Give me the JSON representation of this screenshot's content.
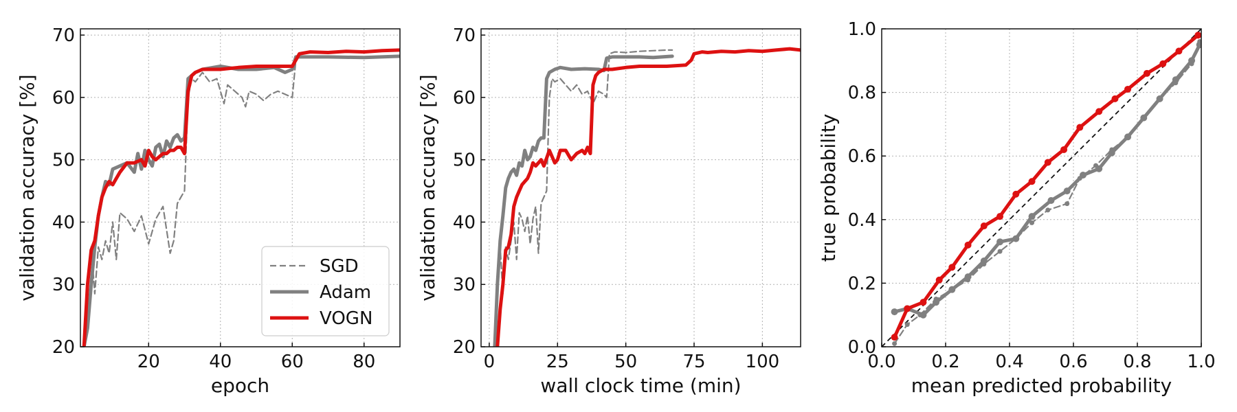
{
  "colors": {
    "sgd": "#808080",
    "adam": "#808080",
    "vogn": "#dd1111",
    "diagonal": "#111111"
  },
  "legend": [
    {
      "key": "sgd",
      "label": "SGD",
      "style": "dashed"
    },
    {
      "key": "adam",
      "label": "Adam",
      "style": "solid-thick"
    },
    {
      "key": "vogn",
      "label": "VOGN",
      "style": "solid-thick"
    }
  ],
  "chart_data": [
    {
      "type": "line",
      "xlabel": "epoch",
      "ylabel": "validation accuracy [%]",
      "xlim": [
        1,
        90
      ],
      "ylim": [
        20,
        71
      ],
      "xticks": [
        20,
        40,
        60,
        80
      ],
      "yticks": [
        20,
        30,
        40,
        50,
        60,
        70
      ],
      "grid": true,
      "legend_position": "bottom-right",
      "series": [
        {
          "key": "sgd",
          "name": "SGD",
          "style": "dashed",
          "x": [
            2,
            3,
            4,
            5,
            6,
            7,
            8,
            9,
            10,
            11,
            12,
            14,
            16,
            18,
            20,
            22,
            24,
            26,
            27,
            28,
            29,
            30,
            31,
            32,
            33,
            35,
            37,
            39,
            41,
            42,
            44,
            46,
            47,
            48,
            50,
            52,
            54,
            56,
            58,
            60,
            61
          ],
          "y": [
            20,
            29,
            36,
            28.5,
            36,
            34,
            37,
            35,
            40,
            34,
            41.5,
            40.5,
            38.5,
            41,
            36.5,
            40.5,
            42.5,
            35,
            37,
            43,
            44,
            45,
            60,
            63,
            62.5,
            64,
            62.5,
            63,
            59,
            62,
            61,
            60,
            58.5,
            61,
            60.5,
            59.5,
            60.5,
            61,
            60.5,
            60,
            66
          ]
        },
        {
          "key": "adam",
          "name": "Adam",
          "style": "solid",
          "x": [
            2,
            3,
            4,
            5,
            6,
            7,
            8,
            9,
            10,
            12,
            14,
            16,
            17,
            18,
            19,
            20,
            21,
            22,
            23,
            24,
            25,
            26,
            27,
            28,
            29,
            30,
            31,
            33,
            35,
            40,
            45,
            50,
            55,
            58,
            60,
            61,
            63,
            70,
            80,
            90
          ],
          "y": [
            20,
            23,
            30,
            36,
            41,
            44,
            46.5,
            46,
            48.5,
            49,
            49.5,
            48,
            51,
            48.5,
            51.5,
            50,
            49,
            52,
            52.5,
            50.5,
            53,
            52,
            53.5,
            54,
            53,
            53.5,
            63,
            64,
            64.5,
            65,
            64.5,
            64.5,
            64.8,
            64,
            64.5,
            66.5,
            66.5,
            66.5,
            66.4,
            66.6
          ]
        },
        {
          "key": "vogn",
          "name": "VOGN",
          "style": "solid",
          "x": [
            2,
            3,
            4,
            5,
            6,
            7,
            8,
            9,
            10,
            11,
            12,
            14,
            16,
            18,
            19,
            20,
            21,
            22,
            23,
            24,
            25,
            26,
            27,
            28,
            29,
            30,
            31,
            32,
            33,
            35,
            40,
            45,
            50,
            55,
            60,
            61,
            62,
            65,
            70,
            75,
            80,
            85,
            90
          ],
          "y": [
            20,
            30,
            35.5,
            37,
            41,
            44,
            45.5,
            46.5,
            46,
            47,
            48,
            49.5,
            49.5,
            50,
            49,
            51.5,
            50.5,
            50,
            50.5,
            51,
            51,
            51.5,
            51.5,
            52,
            52,
            51,
            61,
            63.5,
            64,
            64.5,
            64.5,
            64.8,
            65,
            65,
            65,
            66,
            67,
            67.3,
            67.2,
            67.4,
            67.3,
            67.5,
            67.6
          ]
        }
      ]
    },
    {
      "type": "line",
      "xlabel": "wall clock time (min)",
      "ylabel": "validation accuracy [%]",
      "xlim": [
        -3,
        114
      ],
      "ylim": [
        20,
        71
      ],
      "xticks": [
        0,
        25,
        50,
        75,
        100
      ],
      "yticks": [
        20,
        30,
        40,
        50,
        60,
        70
      ],
      "grid": true,
      "series": [
        {
          "key": "sgd",
          "name": "SGD",
          "style": "dashed",
          "x": [
            2.5,
            3,
            4,
            5,
            6,
            7,
            8,
            9,
            10,
            11,
            12,
            13,
            14,
            15,
            16,
            17,
            18,
            19,
            20,
            21,
            22,
            23,
            24,
            26,
            28,
            30,
            32,
            34,
            36,
            38,
            40,
            42,
            43,
            44,
            46,
            50,
            55,
            60,
            65,
            67
          ],
          "y": [
            20,
            29,
            36,
            28.5,
            36,
            34,
            37,
            40,
            34,
            41.5,
            40.5,
            38.5,
            41,
            36.5,
            40.5,
            42.5,
            35,
            43,
            44,
            45,
            60,
            63,
            62.5,
            63,
            62,
            61,
            62,
            60.5,
            61,
            59,
            61,
            60.5,
            60,
            67,
            67.3,
            67.2,
            67.4,
            67.5,
            67.6,
            67.6
          ]
        },
        {
          "key": "adam",
          "name": "Adam",
          "style": "solid",
          "x": [
            2,
            3,
            4,
            5,
            6,
            7,
            8,
            9,
            10,
            11,
            12,
            13,
            14,
            15,
            16,
            17,
            18,
            19,
            20,
            21,
            22,
            24,
            26,
            30,
            35,
            40,
            42,
            43,
            45,
            50,
            55,
            60,
            67
          ],
          "y": [
            20,
            30,
            37,
            41,
            45.5,
            47,
            48,
            48.5,
            47.5,
            49.5,
            49,
            51.5,
            50,
            50.5,
            52,
            51.5,
            53,
            53.5,
            53.5,
            63,
            64,
            64.5,
            64.8,
            64.5,
            64.6,
            64.5,
            64.3,
            66.3,
            66.5,
            66.5,
            66.5,
            66.4,
            66.6
          ]
        },
        {
          "key": "vogn",
          "name": "VOGN",
          "style": "solid",
          "x": [
            3,
            4,
            5,
            6,
            7,
            8,
            9,
            10,
            11,
            12,
            13,
            14,
            15,
            16,
            17,
            18,
            19,
            20,
            22,
            24,
            25,
            26,
            28,
            30,
            32,
            34,
            35,
            36,
            37,
            38,
            39,
            40,
            42,
            45,
            50,
            55,
            60,
            65,
            72,
            74,
            75,
            78,
            80,
            85,
            90,
            95,
            100,
            105,
            110,
            114
          ],
          "y": [
            20,
            26,
            30,
            35.5,
            36,
            38,
            42.5,
            44,
            45,
            46,
            46.5,
            47,
            48,
            49.5,
            49,
            49.5,
            50,
            49,
            51.5,
            49.5,
            50,
            51.5,
            51.5,
            50,
            51,
            51.5,
            51,
            52,
            51,
            62,
            63.5,
            64,
            64.5,
            64.5,
            64.8,
            65,
            65,
            65,
            65.2,
            66,
            67,
            67.3,
            67.2,
            67.4,
            67.3,
            67.5,
            67.4,
            67.6,
            67.8,
            67.6
          ]
        }
      ]
    },
    {
      "type": "line",
      "xlabel": "mean predicted probability",
      "ylabel": "true probability",
      "xlim": [
        0.0,
        1.0
      ],
      "ylim": [
        0.0,
        1.0
      ],
      "xticks": [
        0.0,
        0.2,
        0.4,
        0.6,
        0.8,
        1.0
      ],
      "yticks": [
        0.0,
        0.2,
        0.4,
        0.6,
        0.8,
        1.0
      ],
      "xtick_labels": [
        "0.0",
        "0.2",
        "0.4",
        "0.6",
        "0.8",
        "1.0"
      ],
      "ytick_labels": [
        "0.0",
        "0.2",
        "0.4",
        "0.6",
        "0.8",
        "1.0"
      ],
      "grid": true,
      "diagonal": true,
      "series": [
        {
          "key": "sgd",
          "name": "SGD",
          "style": "dashed",
          "markers": true,
          "x": [
            0.04,
            0.08,
            0.12,
            0.17,
            0.22,
            0.27,
            0.32,
            0.37,
            0.42,
            0.47,
            0.52,
            0.58,
            0.62,
            0.67,
            0.72,
            0.77,
            0.82,
            0.87,
            0.92,
            0.97,
            0.995
          ],
          "y": [
            0.01,
            0.07,
            0.1,
            0.15,
            0.18,
            0.21,
            0.26,
            0.3,
            0.34,
            0.39,
            0.43,
            0.45,
            0.53,
            0.57,
            0.62,
            0.66,
            0.72,
            0.78,
            0.83,
            0.89,
            0.96
          ]
        },
        {
          "key": "adam",
          "name": "Adam",
          "style": "solid",
          "markers": true,
          "x": [
            0.04,
            0.08,
            0.13,
            0.17,
            0.22,
            0.27,
            0.32,
            0.37,
            0.42,
            0.47,
            0.53,
            0.58,
            0.63,
            0.68,
            0.72,
            0.77,
            0.82,
            0.87,
            0.92,
            0.97,
            0.995
          ],
          "y": [
            0.11,
            0.12,
            0.1,
            0.14,
            0.18,
            0.22,
            0.27,
            0.33,
            0.34,
            0.41,
            0.46,
            0.49,
            0.54,
            0.56,
            0.61,
            0.66,
            0.72,
            0.78,
            0.84,
            0.9,
            0.95
          ]
        },
        {
          "key": "vogn",
          "name": "VOGN",
          "style": "solid",
          "markers": true,
          "x": [
            0.04,
            0.08,
            0.13,
            0.18,
            0.22,
            0.27,
            0.32,
            0.37,
            0.42,
            0.47,
            0.52,
            0.57,
            0.62,
            0.68,
            0.73,
            0.77,
            0.83,
            0.88,
            0.93,
            0.99
          ],
          "y": [
            0.03,
            0.12,
            0.14,
            0.21,
            0.25,
            0.32,
            0.38,
            0.41,
            0.48,
            0.52,
            0.58,
            0.62,
            0.69,
            0.74,
            0.78,
            0.81,
            0.86,
            0.89,
            0.93,
            0.98
          ]
        }
      ]
    }
  ]
}
